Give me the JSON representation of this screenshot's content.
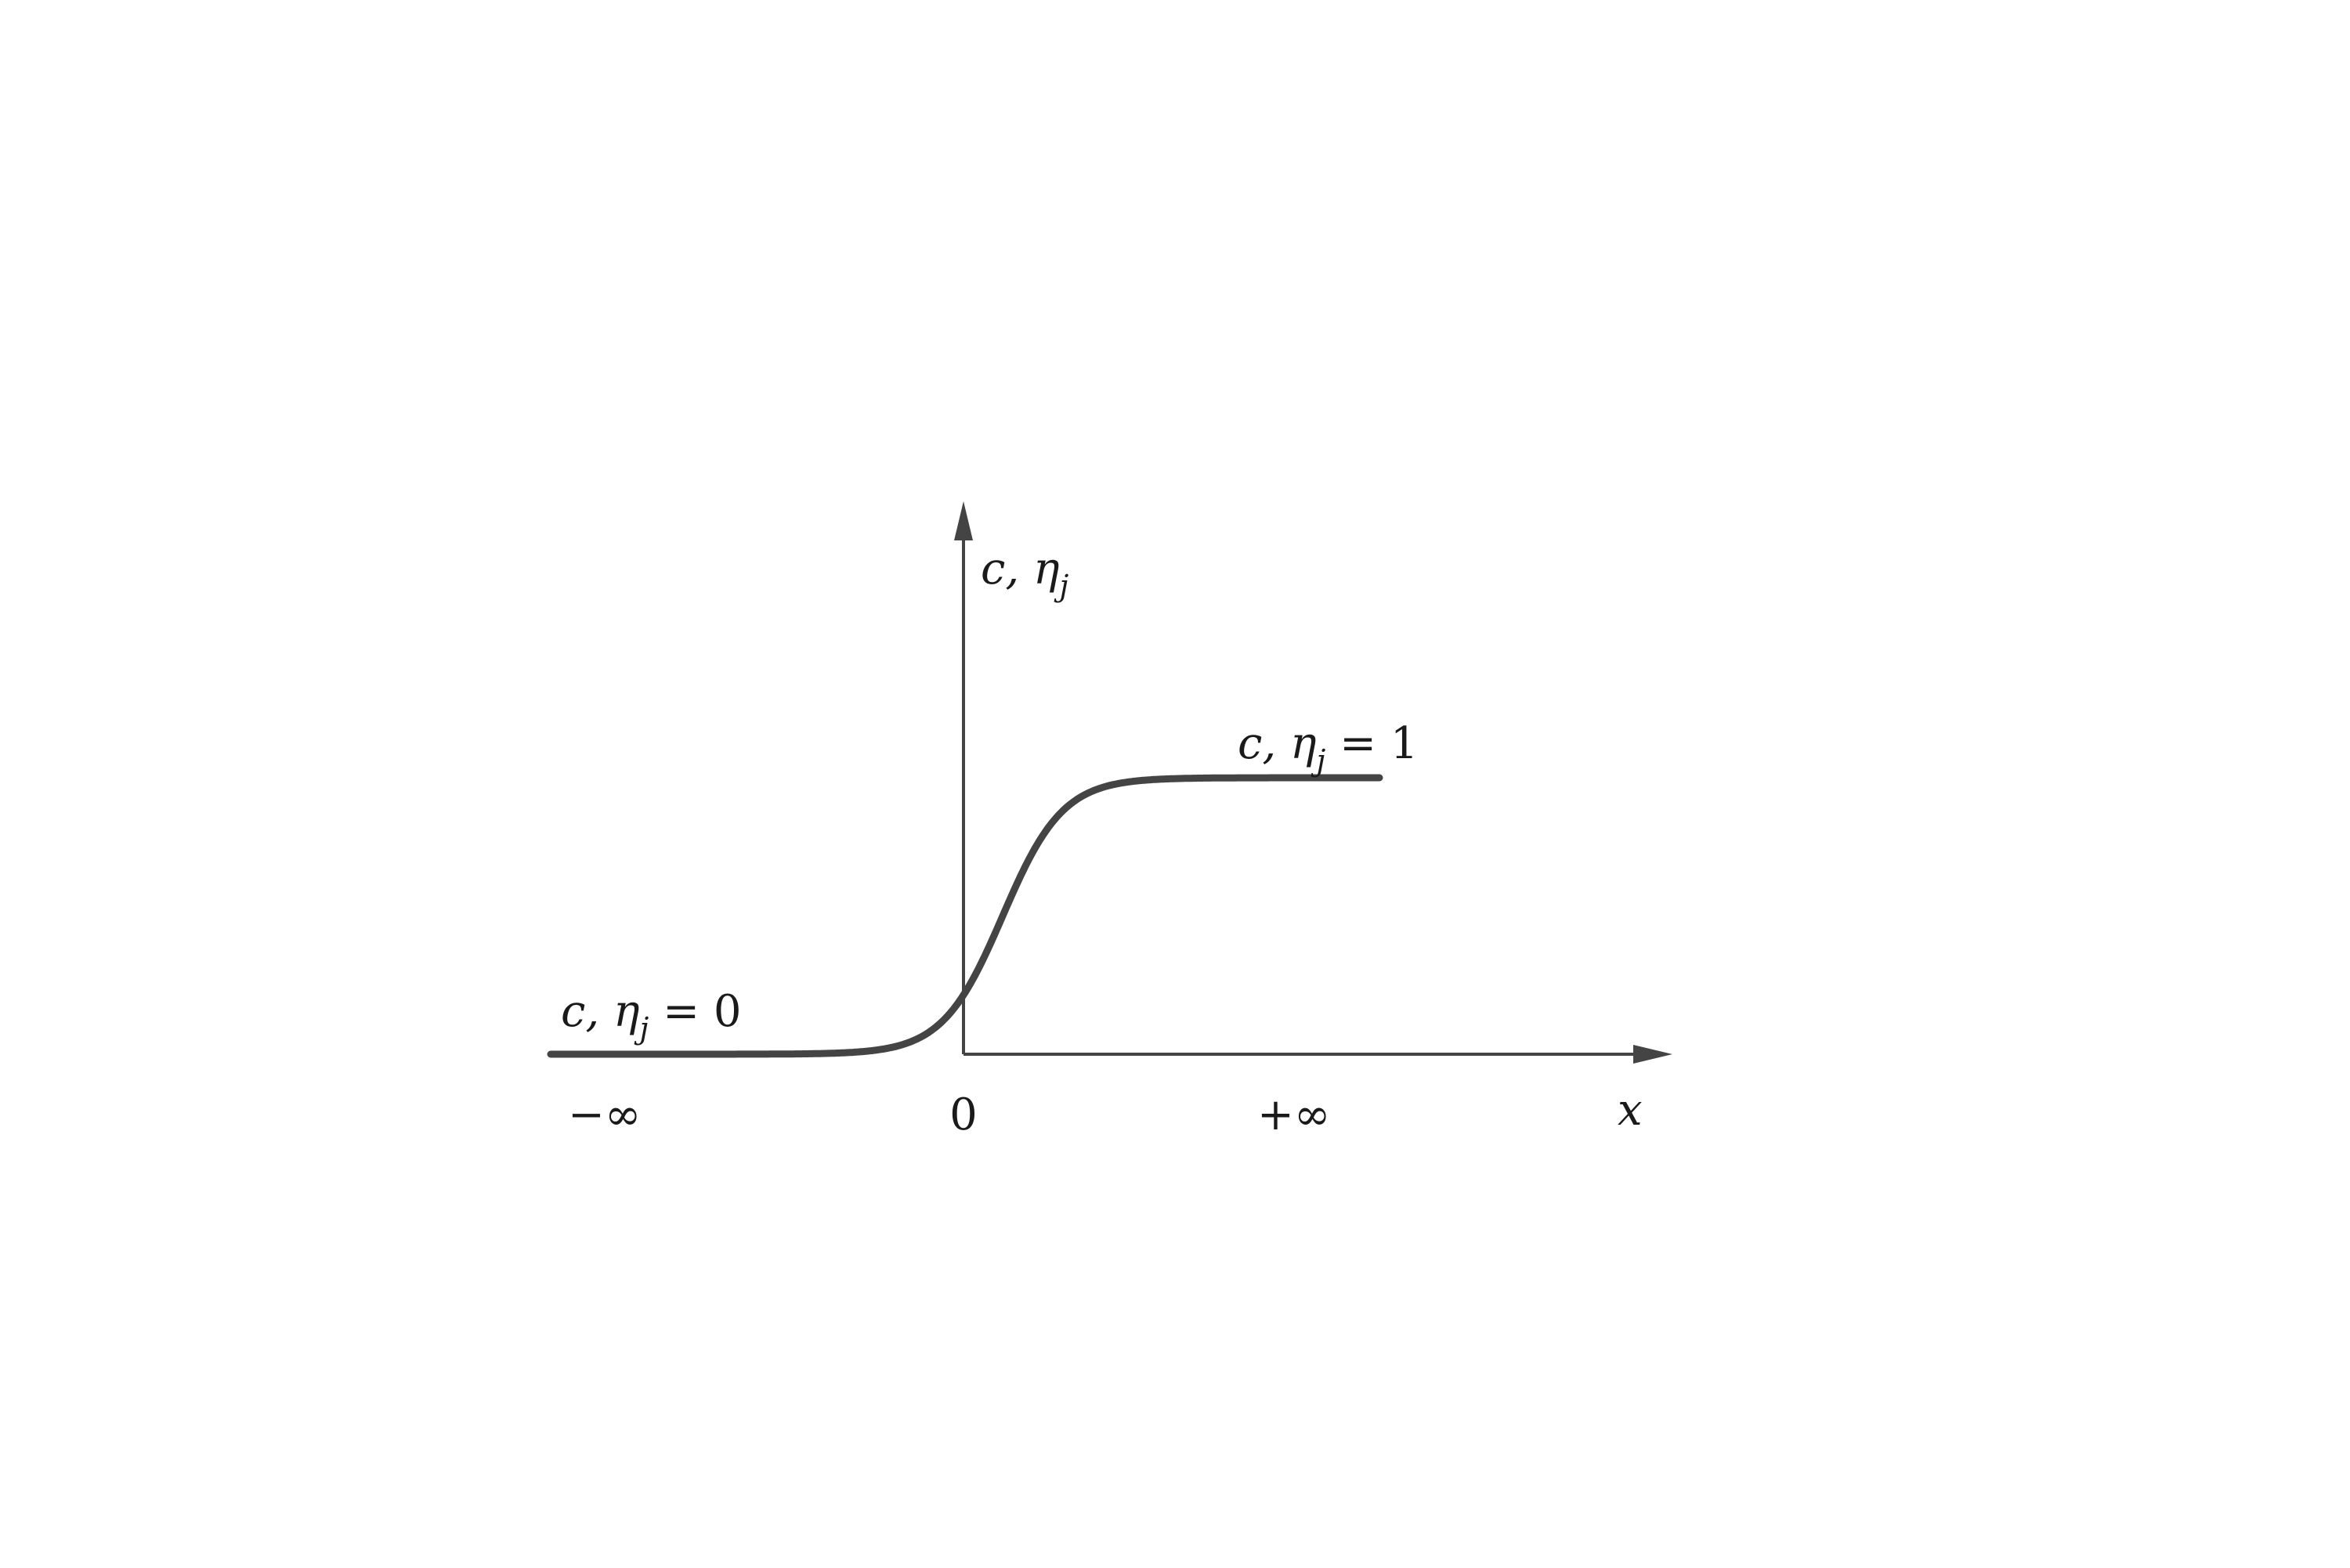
{
  "diagram": {
    "type": "sigmoid-profile",
    "y_axis_label": {
      "main": "c, η",
      "sub": "j"
    },
    "x_axis_label": "x",
    "ticks": {
      "neg_inf": "−∞",
      "zero": "0",
      "pos_inf": "+∞"
    },
    "left_plateau_label": {
      "main": "c, η",
      "sub": "j",
      "rest": " = 0"
    },
    "right_plateau_label": {
      "main": "c, η",
      "sub": "j",
      "rest": " = 1"
    },
    "curve": {
      "low_value": 0,
      "high_value": 1,
      "color": "#444444"
    },
    "axis_color": "#444444"
  }
}
